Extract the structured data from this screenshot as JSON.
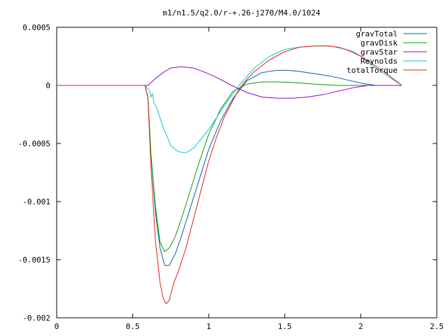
{
  "chart_data": {
    "type": "line",
    "title": "m1/n1.5/q2.0/r-+.26-j270/M4.0/1024",
    "xlabel": "",
    "ylabel": "",
    "xlim": [
      0,
      2.5
    ],
    "ylim": [
      -0.002,
      0.0005
    ],
    "x_ticks": [
      "0",
      "0.5",
      "1",
      "1.5",
      "2",
      "2.5"
    ],
    "y_ticks": [
      "0.0005",
      "0",
      "-0.0005",
      "-0.001",
      "-0.0015",
      "-0.002"
    ],
    "grid": false,
    "legend_position": "top-right",
    "series": [
      {
        "name": "gravTotal",
        "color": "#0060ad",
        "x": [
          0,
          0.58,
          0.6,
          0.62,
          0.65,
          0.68,
          0.71,
          0.74,
          0.78,
          0.82,
          0.88,
          0.94,
          1.0,
          1.08,
          1.16,
          1.25,
          1.35,
          1.45,
          1.52,
          1.6,
          1.7,
          1.8,
          1.9,
          2.0,
          2.1,
          2.2,
          2.27
        ],
        "y": [
          0,
          0,
          -0.0001,
          -0.0006,
          -0.0011,
          -0.0014,
          -0.00155,
          -0.00155,
          -0.00145,
          -0.0013,
          -0.00105,
          -0.0008,
          -0.00055,
          -0.0003,
          -0.00011,
          4e-05,
          0.00011,
          0.00013,
          0.00013,
          0.00012,
          0.0001,
          8e-05,
          5e-05,
          2e-05,
          0.0,
          0.0,
          0.0
        ]
      },
      {
        "name": "gravDisk",
        "color": "#009e00",
        "x": [
          0,
          0.58,
          0.6,
          0.62,
          0.65,
          0.68,
          0.71,
          0.74,
          0.78,
          0.82,
          0.88,
          0.94,
          1.0,
          1.08,
          1.16,
          1.25,
          1.35,
          1.45,
          1.55,
          1.7,
          1.85,
          2.0,
          2.15,
          2.27
        ],
        "y": [
          0,
          0,
          -0.0001,
          -0.0006,
          -0.00105,
          -0.00135,
          -0.00143,
          -0.0014,
          -0.0013,
          -0.00115,
          -0.0009,
          -0.00065,
          -0.00042,
          -0.0002,
          -5e-05,
          1e-05,
          3e-05,
          3e-05,
          2.5e-05,
          1e-05,
          0.0,
          0.0,
          0.0,
          0.0
        ]
      },
      {
        "name": "gravStar",
        "color": "#9400d3",
        "x": [
          0,
          0.58,
          0.6,
          0.65,
          0.7,
          0.75,
          0.82,
          0.9,
          0.98,
          1.05,
          1.15,
          1.25,
          1.35,
          1.45,
          1.55,
          1.65,
          1.75,
          1.85,
          1.95,
          2.05,
          2.15,
          2.27
        ],
        "y": [
          0,
          0,
          0.0,
          6e-05,
          0.00011,
          0.00015,
          0.00016,
          0.00015,
          0.00011,
          7e-05,
          0.0,
          -6e-05,
          -0.0001,
          -0.00011,
          -0.00011,
          -0.0001,
          -8e-05,
          -5e-05,
          -2e-05,
          0.0,
          0.0,
          0.0
        ]
      },
      {
        "name": "Reynolds",
        "color": "#00cccc",
        "x": [
          0,
          0.58,
          0.6,
          0.61,
          0.62,
          0.63,
          0.64,
          0.66,
          0.68,
          0.7,
          0.72,
          0.75,
          0.8,
          0.85,
          0.9,
          1.0,
          1.1,
          1.2,
          1.3,
          1.4,
          1.5,
          1.6,
          1.7,
          1.8,
          1.9,
          2.0,
          2.1,
          2.2,
          2.27
        ],
        "y": [
          0,
          0,
          -3e-05,
          -4e-05,
          -0.0001,
          -7e-05,
          -0.00015,
          -0.0002,
          -0.00028,
          -0.00036,
          -0.00042,
          -0.00052,
          -0.00057,
          -0.00058,
          -0.00054,
          -0.00038,
          -0.00018,
          0.0,
          0.00015,
          0.00025,
          0.00031,
          0.00033,
          0.00034,
          0.00034,
          0.00031,
          0.00025,
          0.00015,
          6e-05,
          0.0
        ]
      },
      {
        "name": "totalTorque",
        "color": "#e51e10",
        "x": [
          0,
          0.58,
          0.6,
          0.62,
          0.65,
          0.68,
          0.7,
          0.72,
          0.74,
          0.77,
          0.8,
          0.85,
          0.9,
          0.95,
          1.0,
          1.05,
          1.1,
          1.15,
          1.2,
          1.25,
          1.3,
          1.4,
          1.5,
          1.6,
          1.7,
          1.78,
          1.85,
          1.95,
          2.05,
          2.15,
          2.22,
          2.27
        ],
        "y": [
          0,
          0,
          -0.0001,
          -0.0007,
          -0.00135,
          -0.0017,
          -0.00183,
          -0.00188,
          -0.00185,
          -0.0017,
          -0.0016,
          -0.0014,
          -0.00115,
          -0.0009,
          -0.00065,
          -0.00045,
          -0.00028,
          -0.00015,
          -3e-05,
          5e-05,
          0.00012,
          0.00022,
          0.00029,
          0.00033,
          0.00034,
          0.00034,
          0.00033,
          0.00029,
          0.00021,
          0.00012,
          5e-05,
          0.0
        ]
      }
    ]
  }
}
